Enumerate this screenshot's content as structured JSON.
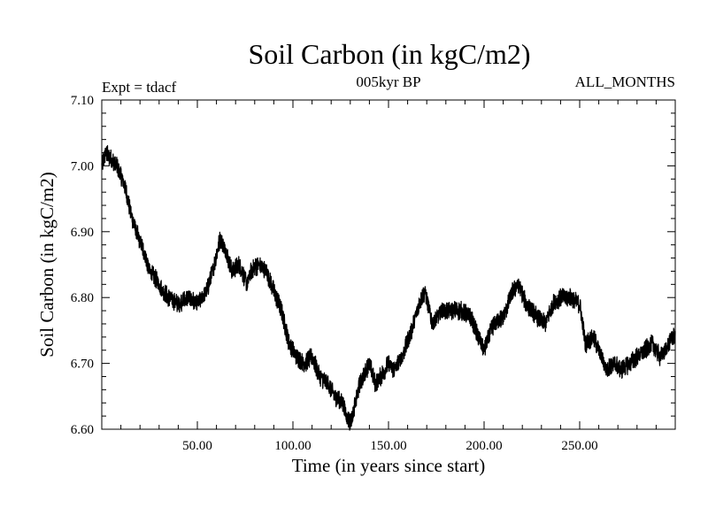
{
  "chart_data": {
    "type": "line",
    "title": "Soil Carbon (in kgC/m2)",
    "subtitle": "005kyr BP",
    "experiment": "Expt = tdacf",
    "months_label": "ALL_MONTHS",
    "xlabel": "Time (in years since start)",
    "ylabel": "Soil Carbon (in kgC/m2)",
    "xlim": [
      0,
      300
    ],
    "ylim": [
      6.6,
      7.1
    ],
    "x_ticks": [
      50,
      100,
      150,
      200,
      250
    ],
    "x_tick_labels": [
      "50.00",
      "100.00",
      "150.00",
      "200.00",
      "250.00"
    ],
    "y_ticks": [
      6.6,
      6.7,
      6.8,
      6.9,
      7.0,
      7.1
    ],
    "y_tick_labels": [
      "6.60",
      "6.70",
      "6.80",
      "6.90",
      "7.00",
      "7.10"
    ],
    "noise_amplitude": 0.012,
    "series": [
      {
        "name": "Soil Carbon",
        "color": "#000000",
        "x": [
          0,
          2,
          5,
          8,
          12,
          15,
          18,
          22,
          25,
          28,
          32,
          35,
          40,
          45,
          50,
          55,
          58,
          62,
          65,
          68,
          72,
          76,
          78,
          82,
          86,
          90,
          94,
          98,
          102,
          106,
          110,
          114,
          118,
          122,
          126,
          128,
          130,
          132,
          135,
          140,
          143,
          146,
          150,
          153,
          157,
          162,
          166,
          169,
          173,
          178,
          183,
          188,
          193,
          197,
          200,
          205,
          210,
          215,
          218,
          222,
          228,
          232,
          236,
          240,
          245,
          250,
          253,
          257,
          260,
          264,
          268,
          272,
          276,
          280,
          284,
          288,
          292,
          295,
          298,
          300
        ],
        "y": [
          7.0,
          7.02,
          7.01,
          7.0,
          6.97,
          6.93,
          6.9,
          6.87,
          6.84,
          6.83,
          6.81,
          6.8,
          6.79,
          6.8,
          6.79,
          6.81,
          6.84,
          6.89,
          6.87,
          6.84,
          6.85,
          6.82,
          6.84,
          6.85,
          6.84,
          6.81,
          6.78,
          6.73,
          6.71,
          6.7,
          6.71,
          6.68,
          6.67,
          6.65,
          6.64,
          6.62,
          6.61,
          6.63,
          6.67,
          6.7,
          6.67,
          6.68,
          6.7,
          6.69,
          6.71,
          6.75,
          6.79,
          6.81,
          6.76,
          6.78,
          6.78,
          6.78,
          6.77,
          6.74,
          6.72,
          6.76,
          6.77,
          6.81,
          6.82,
          6.79,
          6.77,
          6.76,
          6.79,
          6.8,
          6.8,
          6.79,
          6.73,
          6.74,
          6.72,
          6.69,
          6.7,
          6.69,
          6.7,
          6.71,
          6.72,
          6.73,
          6.71,
          6.72,
          6.74,
          6.74
        ]
      }
    ]
  }
}
